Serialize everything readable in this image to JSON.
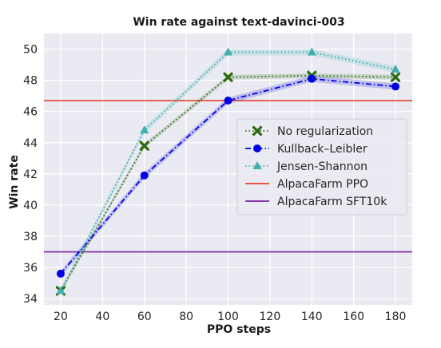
{
  "chart_data": {
    "type": "line",
    "title": "Win rate against text-davinci-003",
    "xlabel": "PPO steps",
    "ylabel": "Win rate",
    "xlim": [
      12,
      188
    ],
    "ylim": [
      33.6,
      51
    ],
    "xticks": [
      20,
      40,
      60,
      80,
      100,
      120,
      140,
      160,
      180
    ],
    "yticks": [
      34,
      36,
      38,
      40,
      42,
      44,
      46,
      48,
      50
    ],
    "grid": true,
    "legend_position": "right",
    "x": [
      20,
      60,
      100,
      140,
      180
    ],
    "series": [
      {
        "name": "No regularization",
        "values": [
          34.5,
          43.8,
          48.2,
          48.3,
          48.2
        ],
        "color": "#2d6a10",
        "line_style": "dotted",
        "marker": "x",
        "band": 0.15
      },
      {
        "name": "Kullback–Leibler",
        "values": [
          35.6,
          41.9,
          46.7,
          48.1,
          47.6
        ],
        "color": "#0000e6",
        "line_style": "dashdot",
        "marker": "circle",
        "band": 0.2
      },
      {
        "name": "Jensen-Shannon",
        "values": [
          34.5,
          44.8,
          49.8,
          49.8,
          48.7
        ],
        "color": "#3fb0b0",
        "line_style": "dotted",
        "marker": "triangle",
        "band": 0.2
      }
    ],
    "reference_lines": [
      {
        "name": "AlpacaFarm PPO",
        "value": 46.7,
        "color": "#e8412c"
      },
      {
        "name": "AlpacaFarm SFT10k",
        "value": 37.0,
        "color": "#7b1fa2"
      }
    ]
  }
}
